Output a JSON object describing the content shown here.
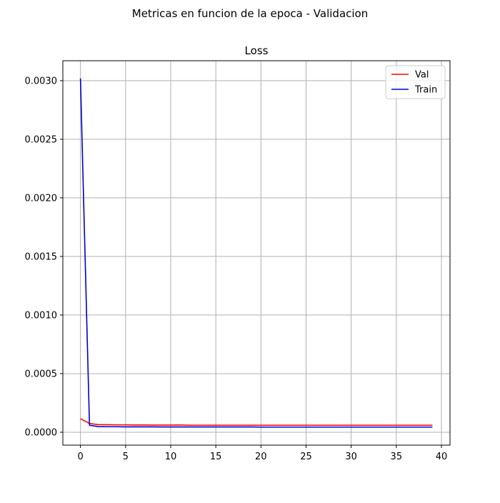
{
  "figure": {
    "suptitle": "Metricas en funcion de la epoca - Validacion"
  },
  "chart_data": {
    "type": "line",
    "title": "Loss",
    "xlabel": "",
    "ylabel": "",
    "xlim": [
      -1.95,
      40.95
    ],
    "ylim": [
      -0.00011,
      0.00317
    ],
    "xticks": [
      0,
      5,
      10,
      15,
      20,
      25,
      30,
      35,
      40
    ],
    "yticks": [
      0.0,
      0.0005,
      0.001,
      0.0015,
      0.002,
      0.0025,
      0.003
    ],
    "ytick_labels": [
      "0.0000",
      "0.0005",
      "0.0010",
      "0.0015",
      "0.0020",
      "0.0025",
      "0.0030"
    ],
    "grid": true,
    "legend_position": "top-right",
    "x": [
      0,
      1,
      2,
      3,
      4,
      5,
      6,
      7,
      8,
      9,
      10,
      11,
      12,
      13,
      14,
      15,
      16,
      17,
      18,
      19,
      20,
      21,
      22,
      23,
      24,
      25,
      26,
      27,
      28,
      29,
      30,
      31,
      32,
      33,
      34,
      35,
      36,
      37,
      38,
      39
    ],
    "series": [
      {
        "name": "Val",
        "color": "#ff0000",
        "values": [
          0.000115,
          7.5e-05,
          6.5e-05,
          6.4e-05,
          6.3e-05,
          6.3e-05,
          6.2e-05,
          6.2e-05,
          6.1e-05,
          6.1e-05,
          6.1e-05,
          6.2e-05,
          6e-05,
          6e-05,
          6e-05,
          6e-05,
          6e-05,
          6e-05,
          6e-05,
          6e-05,
          6e-05,
          6e-05,
          6e-05,
          6e-05,
          6e-05,
          6e-05,
          6e-05,
          6e-05,
          6e-05,
          6e-05,
          6e-05,
          6e-05,
          6e-05,
          6e-05,
          6e-05,
          6e-05,
          6e-05,
          6e-05,
          6e-05,
          6e-05
        ]
      },
      {
        "name": "Train",
        "color": "#0000cc",
        "values": [
          0.00302,
          6e-05,
          4.8e-05,
          4.7e-05,
          4.7e-05,
          4.6e-05,
          4.6e-05,
          4.6e-05,
          4.6e-05,
          4.5e-05,
          4.5e-05,
          4.5e-05,
          4.5e-05,
          4.5e-05,
          4.5e-05,
          4.5e-05,
          4.5e-05,
          4.5e-05,
          4.5e-05,
          4.5e-05,
          4.4e-05,
          4.4e-05,
          4.4e-05,
          4.4e-05,
          4.4e-05,
          4.4e-05,
          4.4e-05,
          4.4e-05,
          4.4e-05,
          4.4e-05,
          4.4e-05,
          4.4e-05,
          4.4e-05,
          4.4e-05,
          4.4e-05,
          4.4e-05,
          4.4e-05,
          4.4e-05,
          4.4e-05,
          4.4e-05
        ]
      }
    ]
  }
}
